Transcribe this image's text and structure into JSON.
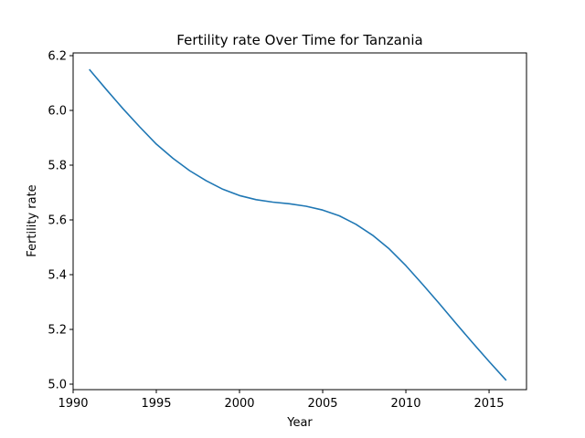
{
  "chart_data": {
    "type": "line",
    "title": "Fertility rate Over Time for Tanzania",
    "xlabel": "Year",
    "ylabel": "Fertility rate",
    "xlim": [
      1990,
      2017.25
    ],
    "ylim": [
      4.98,
      6.21
    ],
    "xticks": [
      1990,
      1995,
      2000,
      2005,
      2010,
      2015
    ],
    "xtick_labels": [
      "1990",
      "1995",
      "2000",
      "2005",
      "2010",
      "2015"
    ],
    "yticks": [
      5.0,
      5.2,
      5.4,
      5.6,
      5.8,
      6.0,
      6.2
    ],
    "ytick_labels": [
      "5.0",
      "5.2",
      "5.4",
      "5.6",
      "5.8",
      "6.0",
      "6.2"
    ],
    "grid": false,
    "series": [
      {
        "color": "#1f77b4",
        "x": [
          1991,
          1992,
          1993,
          1994,
          1995,
          1996,
          1997,
          1998,
          1999,
          2000,
          2001,
          2002,
          2003,
          2004,
          2005,
          2006,
          2007,
          2008,
          2009,
          2010,
          2011,
          2012,
          2013,
          2014,
          2015,
          2016
        ],
        "y": [
          6.148,
          6.076,
          6.006,
          5.94,
          5.877,
          5.825,
          5.78,
          5.743,
          5.712,
          5.689,
          5.674,
          5.665,
          5.659,
          5.65,
          5.636,
          5.615,
          5.584,
          5.544,
          5.494,
          5.433,
          5.365,
          5.295,
          5.223,
          5.152,
          5.083,
          5.016
        ]
      }
    ]
  }
}
